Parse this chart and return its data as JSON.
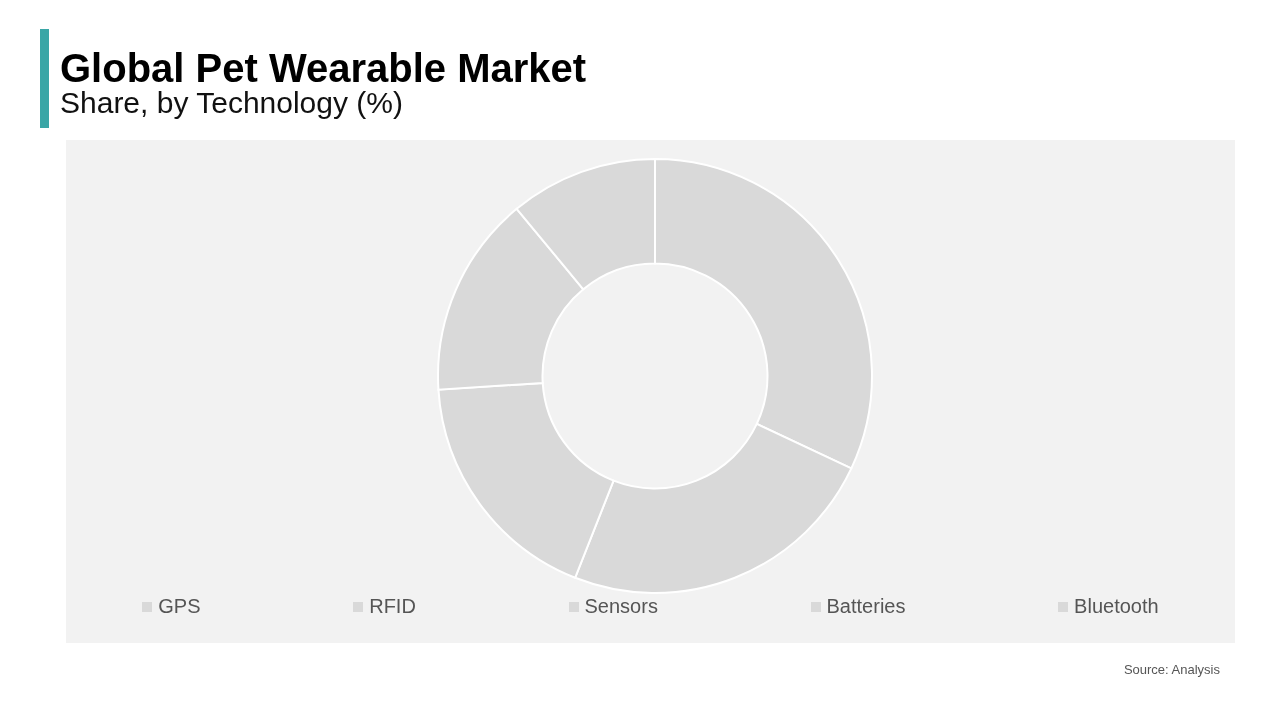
{
  "chart_data": {
    "type": "donut",
    "title": "Global Pet Wearable Market",
    "subtitle": "Share, by Technology (%)",
    "categories": [
      "GPS",
      "RFID",
      "Sensors",
      "Batteries",
      "Bluetooth"
    ],
    "values": [
      32,
      24,
      18,
      15,
      11
    ],
    "colors": [
      "#d9d9d9",
      "#d9d9d9",
      "#d9d9d9",
      "#d9d9d9",
      "#d9d9d9"
    ],
    "legend": "bottom",
    "annotations": [
      "Source: Analysis"
    ]
  }
}
